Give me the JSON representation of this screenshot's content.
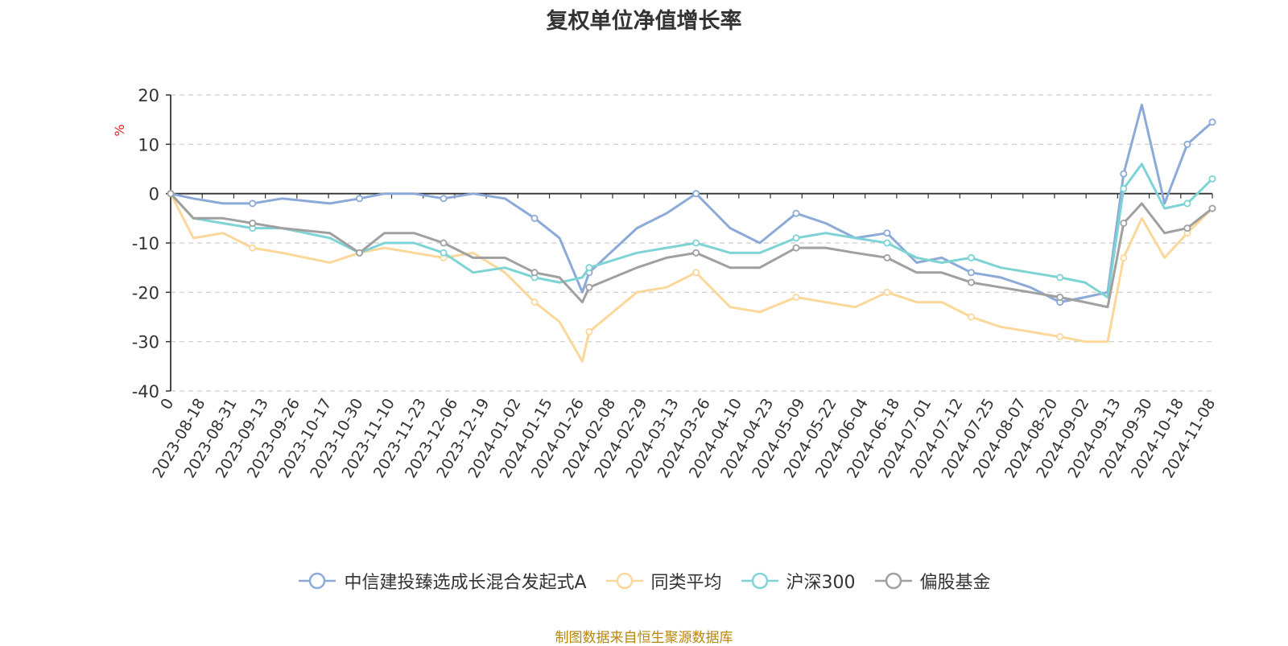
{
  "source_note": "制图数据来自恒生聚源数据库",
  "colors": {
    "grid": "#cccccc",
    "axis": "#333333",
    "ylabel": "#e02020"
  },
  "chart_data": {
    "type": "line",
    "title": "复权单位净值增长率",
    "ylabel": "%",
    "ylim": [
      -40,
      20
    ],
    "yticks": [
      -40,
      -30,
      -20,
      -10,
      0,
      10,
      20
    ],
    "grid": true,
    "legend_position": "bottom",
    "x_range": [
      "2023-08-08",
      "2024-11-08"
    ],
    "x_tick_labels": [
      "0",
      "2023-08-18",
      "2023-08-31",
      "2023-09-13",
      "2023-09-26",
      "2023-10-17",
      "2023-10-30",
      "2023-11-10",
      "2023-11-23",
      "2023-12-06",
      "2023-12-19",
      "2024-01-02",
      "2024-01-15",
      "2024-01-26",
      "2024-02-08",
      "2024-02-29",
      "2024-03-13",
      "2024-03-26",
      "2024-04-10",
      "2024-04-23",
      "2024-05-09",
      "2024-05-22",
      "2024-06-04",
      "2024-06-18",
      "2024-07-01",
      "2024-07-12",
      "2024-07-25",
      "2024-08-07",
      "2024-08-20",
      "2024-09-02",
      "2024-09-13",
      "2024-09-30",
      "2024-10-18",
      "2024-11-08"
    ],
    "x": [
      "2023-08-08",
      "2023-08-18",
      "2023-08-31",
      "2023-09-13",
      "2023-09-26",
      "2023-10-17",
      "2023-10-30",
      "2023-11-10",
      "2023-11-23",
      "2023-12-06",
      "2023-12-19",
      "2024-01-02",
      "2024-01-15",
      "2024-01-26",
      "2024-02-05",
      "2024-02-08",
      "2024-02-29",
      "2024-03-13",
      "2024-03-26",
      "2024-04-10",
      "2024-04-23",
      "2024-05-09",
      "2024-05-22",
      "2024-06-04",
      "2024-06-18",
      "2024-07-01",
      "2024-07-12",
      "2024-07-25",
      "2024-08-07",
      "2024-08-20",
      "2024-09-02",
      "2024-09-13",
      "2024-09-23",
      "2024-09-30",
      "2024-10-08",
      "2024-10-18",
      "2024-10-28",
      "2024-11-08"
    ],
    "series": [
      {
        "name": "中信建投臻选成长混合发起式A",
        "color": "#8caad8",
        "values": [
          0,
          -1,
          -2,
          -2,
          -1,
          -2,
          -1,
          0,
          0,
          -1,
          0,
          -1,
          -5,
          -9,
          -20,
          -16,
          -7,
          -4,
          0,
          -7,
          -10,
          -4,
          -6,
          -9,
          -8,
          -14,
          -13,
          -16,
          -17,
          -19,
          -22,
          -21,
          -20,
          4,
          18,
          -2,
          10,
          14.5
        ]
      },
      {
        "name": "同类平均",
        "color": "#fbd89a",
        "values": [
          0,
          -9,
          -8,
          -11,
          -12,
          -14,
          -12,
          -11,
          -12,
          -13,
          -12,
          -16,
          -22,
          -26,
          -34,
          -28,
          -20,
          -19,
          -16,
          -23,
          -24,
          -21,
          -22,
          -23,
          -20,
          -22,
          -22,
          -25,
          -27,
          -28,
          -29,
          -30,
          -30,
          -13,
          -5,
          -13,
          -8,
          -3
        ]
      },
      {
        "name": "沪深300",
        "color": "#7ed3d4",
        "values": [
          0,
          -5,
          -6,
          -7,
          -7,
          -9,
          -12,
          -10,
          -10,
          -12,
          -16,
          -15,
          -17,
          -18,
          -17,
          -15,
          -12,
          -11,
          -10,
          -12,
          -12,
          -9,
          -8,
          -9,
          -10,
          -13,
          -14,
          -13,
          -15,
          -16,
          -17,
          -18,
          -21,
          1,
          6,
          -3,
          -2,
          3
        ]
      },
      {
        "name": "偏股基金",
        "color": "#a0a0a0",
        "values": [
          0,
          -5,
          -5,
          -6,
          -7,
          -8,
          -12,
          -8,
          -8,
          -10,
          -13,
          -13,
          -16,
          -17,
          -22,
          -19,
          -15,
          -13,
          -12,
          -15,
          -15,
          -11,
          -11,
          -12,
          -13,
          -16,
          -16,
          -18,
          -19,
          -20,
          -21,
          -22,
          -23,
          -6,
          -2,
          -8,
          -7,
          -3
        ]
      }
    ]
  }
}
